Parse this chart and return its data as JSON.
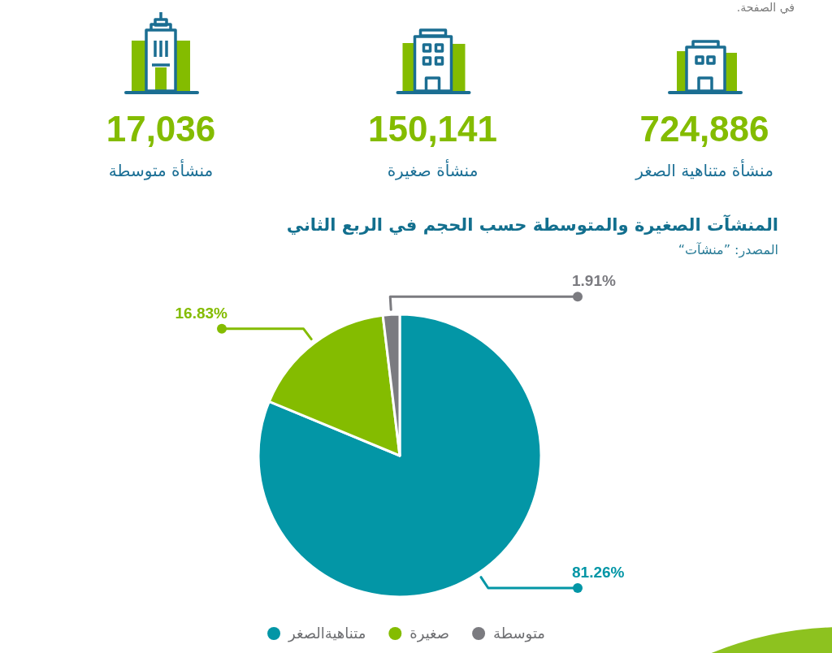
{
  "chart_data": [
    {
      "type": "other",
      "annotations": [
        "في الصفحة.",
        "724,886",
        "منشأة متناهية الصغر",
        "150,141",
        "منشأة صغيرة",
        "17,036",
        "منشأة متوسطة"
      ]
    },
    {
      "type": "pie",
      "title": "المنشآت الصغيرة والمتوسطة حسب الحجم في الربع الثاني",
      "annotations": [
        "المصدر: ”منشآت“"
      ],
      "categories": [
        "متناهيةالصغر",
        "صغيرة",
        "متوسطة"
      ],
      "values": [
        81.26,
        16.83,
        1.91
      ],
      "colors": [
        "#0396a6",
        "#84bc00",
        "#7b7b80"
      ],
      "value_labels": [
        "81.26%",
        "16.83%",
        "1.91%"
      ],
      "legend": "bottom"
    }
  ]
}
